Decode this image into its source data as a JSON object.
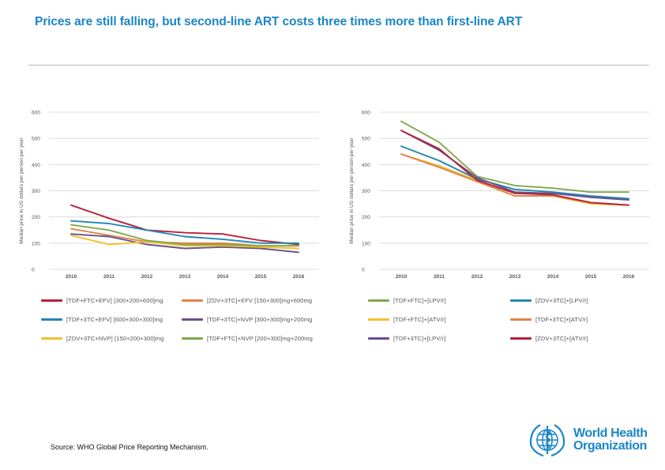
{
  "page_title": "Prices are still falling, but second-line ART costs three times more than first-line ART",
  "source": "Source: WHO Global Price Reporting Mechanism.",
  "logo": {
    "line1": "World Health",
    "line2": "Organization",
    "icon": "who-emblem-icon"
  },
  "colors": {
    "accent": "#1a86c7",
    "grid": "#dcdcdc"
  },
  "chart_data": [
    {
      "type": "line",
      "ylabel": "Median price in US dollars per person per year",
      "xlabel": "",
      "categories": [
        "2010",
        "2011",
        "2012",
        "2013",
        "2014",
        "2015",
        "2016"
      ],
      "ylim": [
        0,
        600
      ],
      "yticks": [
        "0",
        "100",
        "200",
        "300",
        "400",
        "500",
        "600"
      ],
      "grid": true,
      "series": [
        {
          "name": "[TDF+FTC+EFV] [300+200+600]mg",
          "color": "#b5223a",
          "values": [
            245,
            195,
            150,
            140,
            135,
            110,
            95
          ]
        },
        {
          "name": "[ZDV+3TC]+EFV [150+300]mg+600mg",
          "color": "#e0844a",
          "values": [
            155,
            130,
            105,
            100,
            100,
            90,
            90
          ]
        },
        {
          "name": "[TDF+3TC+EFV] [600+300+300]mg",
          "color": "#2385b5",
          "values": [
            185,
            175,
            150,
            125,
            115,
            100,
            100
          ]
        },
        {
          "name": "[TDF+3TC]+NVP [300+300]mg+200mg",
          "color": "#6a4f8c",
          "values": [
            135,
            125,
            95,
            80,
            85,
            80,
            65
          ]
        },
        {
          "name": "[ZDV+3TC+NVP] [150+200+300]mg",
          "color": "#f2c12a",
          "values": [
            130,
            95,
            105,
            90,
            90,
            85,
            80
          ]
        },
        {
          "name": "[TDF+FTC]+NVP [200+300]mg+200mg",
          "color": "#82a84b",
          "values": [
            170,
            150,
            110,
            95,
            95,
            90,
            90
          ]
        }
      ]
    },
    {
      "type": "line",
      "ylabel": "Median price in US dollars per person per year",
      "xlabel": "",
      "categories": [
        "2010",
        "2011",
        "2012",
        "2013",
        "2014",
        "2015",
        "2016"
      ],
      "ylim": [
        0,
        600
      ],
      "yticks": [
        "0",
        "100",
        "200",
        "300",
        "400",
        "500",
        "600"
      ],
      "grid": true,
      "series": [
        {
          "name": "[TDF+FTC]+[LPV/r]",
          "color": "#82a84b",
          "values": [
            565,
            485,
            355,
            320,
            310,
            295,
            295
          ]
        },
        {
          "name": "[ZDV+3TC]+[LPV/r]",
          "color": "#2385b5",
          "values": [
            470,
            415,
            345,
            305,
            295,
            280,
            270
          ]
        },
        {
          "name": "[TDF+FTC]+[ATV/r]",
          "color": "#f2c12a",
          "values": [
            440,
            395,
            340,
            280,
            280,
            250,
            245
          ]
        },
        {
          "name": "[TDF+3TC]+[ATV/r]",
          "color": "#e0844a",
          "values": [
            440,
            390,
            335,
            280,
            280,
            255,
            245
          ]
        },
        {
          "name": "[TDF+3TC]+[LPV/r]",
          "color": "#6a4f8c",
          "values": [
            530,
            455,
            350,
            295,
            290,
            275,
            265
          ]
        },
        {
          "name": "[ZDV+3TC]+[ATV/r]",
          "color": "#b5223a",
          "values": [
            530,
            460,
            340,
            290,
            285,
            255,
            245
          ]
        }
      ]
    }
  ]
}
